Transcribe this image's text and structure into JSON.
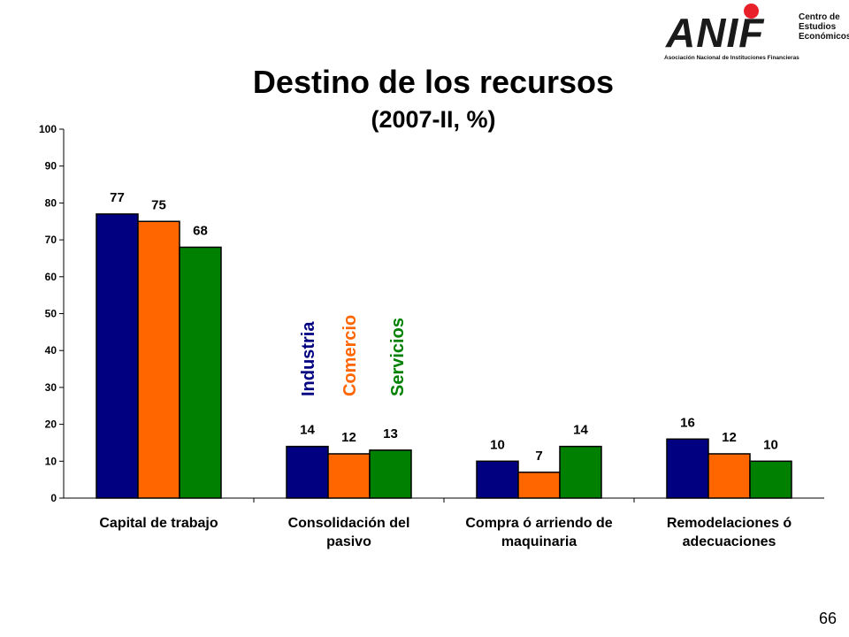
{
  "header": {
    "title": "Destino de los recursos",
    "subtitle": "(2007-II, %)"
  },
  "logo": {
    "name": "ANIF",
    "caption": "Asociación Nacional de Instituciones Financieras",
    "center_line1": "Centro de",
    "center_line2": "Estudios",
    "center_line3": "Económicos",
    "accent_color": "#e8202a"
  },
  "page_number": "66",
  "chart_data": {
    "type": "bar",
    "title": "Destino de los recursos",
    "subtitle": "(2007-II, %)",
    "categories": [
      [
        "Capital de trabajo"
      ],
      [
        "Consolidación del",
        "pasivo"
      ],
      [
        "Compra ó arriendo de",
        "maquinaria"
      ],
      [
        "Remodelaciones ó",
        "adecuaciones"
      ]
    ],
    "series": [
      {
        "name": "Industria",
        "color": "#000080",
        "values": [
          77,
          14,
          10,
          16
        ]
      },
      {
        "name": "Comercio",
        "color": "#ff6600",
        "values": [
          75,
          12,
          7,
          12
        ]
      },
      {
        "name": "Servicios",
        "color": "#008000",
        "values": [
          68,
          13,
          14,
          10
        ]
      }
    ],
    "ylim": [
      0,
      100
    ],
    "yticks": [
      0,
      10,
      20,
      30,
      40,
      50,
      60,
      70,
      80,
      90,
      100
    ],
    "grid": false,
    "legend": "vertical labels inside plot above second group"
  }
}
